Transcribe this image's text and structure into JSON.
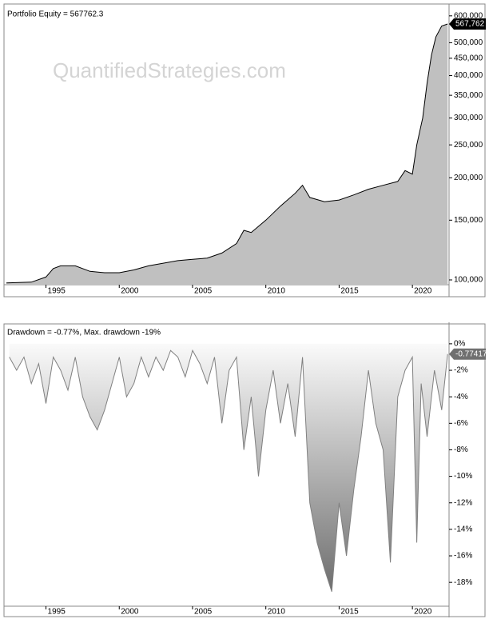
{
  "chart_data": [
    {
      "type": "area",
      "title": "Portfolio Equity = 567762.3",
      "watermark": "QuantifiedStrategies.com",
      "log_scale": true,
      "color": "#c0c0c0",
      "line_color": "#000000",
      "x": [
        1992.3,
        1994,
        1995,
        1995.5,
        1996,
        1997,
        1998,
        1999,
        2000,
        2001,
        2002,
        2003,
        2004,
        2005,
        2006,
        2007,
        2008,
        2008.5,
        2009,
        2010,
        2011,
        2012,
        2012.5,
        2013,
        2014,
        2015,
        2016,
        2017,
        2018,
        2019,
        2019.5,
        2020,
        2020.3,
        2020.7,
        2021,
        2021.3,
        2021.6,
        2022,
        2022.4
      ],
      "values": [
        98000,
        98500,
        102000,
        108000,
        110000,
        110000,
        106000,
        105000,
        105000,
        107000,
        110000,
        112000,
        114000,
        115000,
        116000,
        120000,
        128000,
        140000,
        138000,
        150000,
        165000,
        180000,
        190000,
        175000,
        170000,
        172000,
        178000,
        185000,
        190000,
        195000,
        210000,
        205000,
        250000,
        300000,
        380000,
        460000,
        520000,
        560000,
        567762.3
      ],
      "last_label": "567,762",
      "xlim": [
        1992.3,
        2022.5
      ],
      "xticks": [
        1995,
        2000,
        2005,
        2010,
        2015,
        2020
      ],
      "ylim": [
        96800,
        626000
      ],
      "yticks": [
        {
          "value": 100000,
          "label": "100,000"
        },
        {
          "value": 150000,
          "label": "150,000"
        },
        {
          "value": 200000,
          "label": "200,000"
        },
        {
          "value": 250000,
          "label": "250,000"
        },
        {
          "value": 300000,
          "label": "300,000"
        },
        {
          "value": 350000,
          "label": "350,000"
        },
        {
          "value": 400000,
          "label": "400,000"
        },
        {
          "value": 450000,
          "label": "450,000"
        },
        {
          "value": 500000,
          "label": "500,000"
        },
        {
          "value": 600000,
          "label": "600,000"
        }
      ]
    },
    {
      "type": "area",
      "title": "Drawdown = -0.77%, Max. drawdown -19%",
      "log_scale": false,
      "color": "#a0a0a0",
      "line_color": "#808080",
      "x": [
        1992.5,
        1993,
        1993.5,
        1994,
        1994.5,
        1995,
        1995.5,
        1996,
        1996.5,
        1997,
        1997.5,
        1998,
        1998.5,
        1999,
        1999.5,
        2000,
        2000.5,
        2001,
        2001.5,
        2002,
        2002.5,
        2003,
        2003.5,
        2004,
        2004.5,
        2005,
        2005.5,
        2006,
        2006.5,
        2007,
        2007.5,
        2008,
        2008.5,
        2009,
        2009.5,
        2010,
        2010.5,
        2011,
        2011.5,
        2012,
        2012.5,
        2013,
        2013.5,
        2014,
        2014.5,
        2015,
        2015.5,
        2016,
        2016.5,
        2017,
        2017.5,
        2018,
        2018.5,
        2019,
        2019.5,
        2020,
        2020.3,
        2020.6,
        2021,
        2021.5,
        2022,
        2022.4
      ],
      "values": [
        -1,
        -2,
        -1,
        -3,
        -1.5,
        -4.5,
        -1,
        -2,
        -3.5,
        -1,
        -4,
        -5.5,
        -6.5,
        -5,
        -3,
        -1,
        -4,
        -3,
        -1,
        -2.5,
        -1,
        -2,
        -0.5,
        -1,
        -2.5,
        -0.5,
        -1.5,
        -3,
        -1,
        -6,
        -2,
        -1,
        -8,
        -4,
        -10,
        -5,
        -2,
        -6,
        -3,
        -7,
        -1,
        -12,
        -15,
        -17,
        -18.7,
        -12,
        -16,
        -11,
        -7,
        -2,
        -6,
        -8,
        -16.5,
        -4,
        -2,
        -1,
        -15,
        -3,
        -7,
        -2,
        -5,
        -0.77417
      ],
      "last_label": "-0.77417",
      "xlim": [
        1992.3,
        2022.5
      ],
      "xticks": [
        1995,
        2000,
        2005,
        2010,
        2015,
        2020
      ],
      "ylim": [
        -19.8,
        1.2
      ],
      "yticks": [
        {
          "value": 0,
          "label": "0%"
        },
        {
          "value": -2,
          "label": "-2%"
        },
        {
          "value": -4,
          "label": "-4%"
        },
        {
          "value": -6,
          "label": "-6%"
        },
        {
          "value": -8,
          "label": "-8%"
        },
        {
          "value": -10,
          "label": "-10%"
        },
        {
          "value": -12,
          "label": "-12%"
        },
        {
          "value": -14,
          "label": "-14%"
        },
        {
          "value": -16,
          "label": "-16%"
        },
        {
          "value": -18,
          "label": "-18%"
        }
      ]
    }
  ]
}
